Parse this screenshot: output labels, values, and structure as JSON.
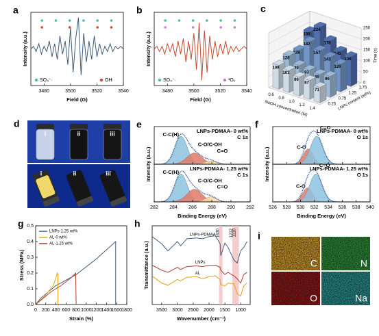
{
  "chart_data": [
    {
      "type": "line",
      "label": "a",
      "xlabel": "Field (G)",
      "ylabel": "Intensity (a.u.)",
      "xlim": [
        3470,
        3540
      ],
      "xticks": [
        3480,
        3500,
        3520,
        3540
      ],
      "ylim": [
        -14,
        14
      ],
      "x": [
        3470,
        3472,
        3474,
        3476,
        3478,
        3480,
        3482,
        3484,
        3486,
        3488,
        3490,
        3492,
        3494,
        3496,
        3498,
        3500,
        3502,
        3504,
        3506,
        3508,
        3510,
        3512,
        3514,
        3516,
        3518,
        3520,
        3522,
        3524,
        3526,
        3528,
        3530,
        3532,
        3534,
        3536,
        3538,
        3540
      ],
      "series": [
        {
          "color": "#3b5a78",
          "values": [
            0,
            1,
            -1,
            2,
            -2,
            1,
            -1,
            3,
            -3,
            2,
            -4,
            5,
            -2,
            3,
            -6,
            8,
            -9,
            4,
            12,
            -10,
            6,
            -5,
            3,
            -4,
            5,
            -3,
            2,
            -2,
            1,
            -1,
            2,
            -1,
            1,
            0,
            1,
            0
          ]
        }
      ],
      "markers": [
        {
          "name": "SO₄⁻·",
          "color": "#4fb8a8"
        },
        {
          "name": "OH·",
          "color": "#d2472f"
        }
      ]
    },
    {
      "type": "line",
      "label": "b",
      "xlabel": "Field (G)",
      "ylabel": "Intensity (a.u.)",
      "xlim": [
        3470,
        3540
      ],
      "xticks": [
        3480,
        3500,
        3520,
        3540
      ],
      "ylim": [
        -14,
        14
      ],
      "x": [
        3470,
        3472,
        3474,
        3476,
        3478,
        3480,
        3482,
        3484,
        3486,
        3488,
        3490,
        3492,
        3494,
        3496,
        3498,
        3500,
        3502,
        3504,
        3506,
        3508,
        3510,
        3512,
        3514,
        3516,
        3518,
        3520,
        3522,
        3524,
        3526,
        3528,
        3530,
        3532,
        3534,
        3536,
        3538,
        3540
      ],
      "series": [
        {
          "color": "#c2492f",
          "values": [
            0,
            1,
            -1,
            1,
            -2,
            2,
            -1,
            2,
            -3,
            3,
            -2,
            4,
            -5,
            3,
            -4,
            6,
            -8,
            10,
            -12,
            7,
            -9,
            5,
            -4,
            3,
            -3,
            2,
            -2,
            3,
            -2,
            1,
            -1,
            1,
            -1,
            0,
            1,
            0
          ]
        }
      ],
      "markers": [
        {
          "name": "SO₄⁻·",
          "color": "#4fb8a8"
        },
        {
          "name": "¹O₂",
          "color": "#c383c8"
        }
      ]
    },
    {
      "type": "bar3d",
      "label": "c",
      "categories": [
        "0.6",
        "0.8",
        "1.0",
        "1.2",
        "1.4"
      ],
      "xlabel": "NaOH concentration (M)",
      "depth_categories": [
        "0.25",
        "0.75",
        "1.25",
        "1.75"
      ],
      "depth_label": "LNPs content (wt%)",
      "zlabel": "Time (s)",
      "zlim": [
        0,
        250
      ],
      "zticks": [
        0,
        50,
        100,
        150,
        200,
        250
      ],
      "series": [
        {
          "color": "#cfdce6",
          "values": [
            109,
            101,
            86,
            87,
            71
          ]
        },
        {
          "color": "#9dbad6",
          "values": [
            128,
            99,
            93,
            89,
            96
          ]
        },
        {
          "color": "#7196c6",
          "values": [
            128,
            182,
            157,
            143,
            126
          ]
        },
        {
          "color": "#4f6fae",
          "values": [
            188,
            224,
            178,
            145,
            136
          ]
        }
      ]
    },
    {
      "type": "xps",
      "label": "e",
      "xlabel": "Binding Energy (eV)",
      "ylabel": "Intensity (a.u.)",
      "xlim": [
        282,
        292
      ],
      "xticks": [
        282,
        284,
        286,
        288,
        290,
        292
      ],
      "ylim": [
        0,
        1.35
      ],
      "envelope_color": "#4a6fa5",
      "subplots": [
        {
          "title": "LNPs-PDMAA- 0 wt%",
          "core": "C 1s",
          "peaks": [
            {
              "name": "C-C(H)",
              "center": 284.8,
              "height": 1,
              "width": 0.65,
              "color": "#8ec3e0"
            },
            {
              "name": "C-O/C-OH",
              "center": 286.2,
              "height": 0.4,
              "width": 0.8,
              "color": "#e07a6a"
            },
            {
              "name": "C=O",
              "center": 287.9,
              "height": 0.12,
              "width": 0.6,
              "color": "#f3d9a0"
            }
          ]
        },
        {
          "title": "LNPs-PDMAA- 1.25 wt%",
          "core": "C 1s",
          "peaks": [
            {
              "name": "C-C(H)",
              "center": 284.8,
              "height": 1,
              "width": 0.65,
              "color": "#8ec3e0"
            },
            {
              "name": "C-O/C-OH",
              "center": 286.2,
              "height": 0.45,
              "width": 0.8,
              "color": "#e07a6a"
            },
            {
              "name": "C=O",
              "center": 287.9,
              "height": 0.18,
              "width": 0.6,
              "color": "#f3d9a0"
            }
          ]
        }
      ]
    },
    {
      "type": "xps",
      "label": "f",
      "xlabel": "Binding Energy (eV)",
      "ylabel": "Intensity (a.u.)",
      "xlim": [
        526,
        540
      ],
      "xticks": [
        526,
        528,
        530,
        532,
        534,
        536,
        538,
        540
      ],
      "ylim": [
        0,
        1.35
      ],
      "envelope_color": "#4a6fa5",
      "subplots": [
        {
          "title": "LNPs-PDMAA- 0 wt%",
          "core": "O 1s",
          "peaks": [
            {
              "name": "C-O",
              "center": 531.1,
              "height": 0.55,
              "width": 0.7,
              "color": "#e07a6a"
            },
            {
              "name": "C=O",
              "center": 532.3,
              "height": 1,
              "width": 0.9,
              "color": "#8ec3e0"
            }
          ]
        },
        {
          "title": "LNPs-PDMAA- 1.25 wt%",
          "core": "O 1s",
          "peaks": [
            {
              "name": "C-O",
              "center": 531,
              "height": 0.5,
              "width": 0.7,
              "color": "#e07a6a"
            },
            {
              "name": "C=O",
              "center": 532.2,
              "height": 1,
              "width": 0.9,
              "color": "#8ec3e0"
            }
          ]
        }
      ]
    },
    {
      "type": "line",
      "label": "g",
      "xlabel": "Strain (%)",
      "ylabel": "Stress (MPa)",
      "xlim": [
        0,
        1800
      ],
      "xticks": [
        0,
        200,
        400,
        600,
        800,
        1000,
        1200,
        1400,
        1600,
        1800
      ],
      "ylim": [
        0,
        0.5
      ],
      "yticks": [
        {
          "value": 0,
          "label": "0.0"
        },
        0.1,
        0.2,
        0.3,
        0.4,
        0.5
      ],
      "legend": "upper left",
      "series": [
        {
          "name": "LNPs-1.25 wt%",
          "color": "#3e5f8a",
          "x": [
            0,
            100,
            400,
            800,
            1200,
            1580,
            1580
          ],
          "values": [
            0,
            0.04,
            0.12,
            0.19,
            0.29,
            0.4,
            0
          ]
        },
        {
          "name": "AL-0 wt%",
          "color": "#e3a21a",
          "x": [
            0,
            200,
            350,
            430,
            440,
            440
          ],
          "values": [
            0,
            0.06,
            0.12,
            0.2,
            0.19,
            0
          ]
        },
        {
          "name": "AL-1.25 wt%",
          "color": "#b03a2e",
          "x": [
            0,
            300,
            500,
            700,
            790,
            800
          ],
          "values": [
            0,
            0.08,
            0.12,
            0.17,
            0.2,
            0
          ]
        }
      ]
    },
    {
      "type": "line",
      "label": "h",
      "xlabel": "Wavenumber (cm⁻¹)",
      "ylabel": "Transmittance (a.u.)",
      "xlim": [
        3800,
        700
      ],
      "xticks": [
        3500,
        3000,
        2500,
        2000,
        1500,
        1000
      ],
      "ylim": [
        0,
        11
      ],
      "legend": "inline",
      "x": [
        3800,
        3500,
        3300,
        3000,
        2900,
        2700,
        2400,
        2200,
        2000,
        1800,
        1650,
        1630,
        1500,
        1400,
        1212,
        1110,
        1000,
        900,
        800
      ],
      "series": [
        {
          "name": "LNPs-PDMAA",
          "color": "#3e5f8a",
          "values": [
            9.5,
            8.5,
            7.5,
            8.8,
            8.2,
            9.2,
            9.3,
            9.2,
            9.5,
            9.6,
            8.5,
            6.8,
            8.6,
            8,
            6.2,
            5.8,
            7.5,
            8,
            8.8
          ]
        },
        {
          "name": "LNPs",
          "color": "#b03a2e",
          "values": [
            5.5,
            4.8,
            4.5,
            5.2,
            4.9,
            5.3,
            5.4,
            5.3,
            5.5,
            5.5,
            5.2,
            4.8,
            4.2,
            4.5,
            4,
            3.6,
            3,
            4.2,
            4.5
          ]
        },
        {
          "name": "AL",
          "color": "#e3a21a",
          "values": [
            4,
            3,
            2.7,
            3.5,
            3.3,
            3.8,
            3.9,
            3.6,
            3.9,
            4,
            3.5,
            2.8,
            2.6,
            3,
            2.9,
            1.5,
            1.2,
            2.6,
            3
          ]
        }
      ],
      "bands": [
        {
          "value": 1630,
          "label": "1630"
        },
        {
          "value": 1212,
          "label": "1212"
        },
        {
          "value": 1110,
          "label": "1110"
        }
      ]
    }
  ],
  "photos": {
    "label": "d",
    "vials": [
      "i",
      "ii",
      "iii",
      "i",
      "ii",
      "iii"
    ]
  },
  "maps": {
    "label": "i",
    "elements": [
      "C",
      "N",
      "O",
      "Na"
    ],
    "colors": [
      "#c8962a",
      "#2e8b3a",
      "#8b1a1a",
      "#2a8c8c"
    ]
  }
}
